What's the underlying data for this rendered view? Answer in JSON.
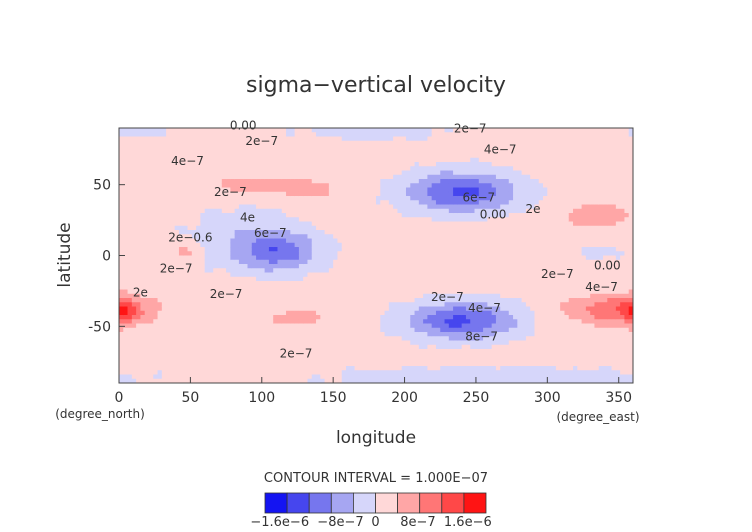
{
  "chart_data": {
    "type": "heatmap",
    "subtype": "filled-contour",
    "title": "sigma−vertical velocity",
    "xlabel": "longitude",
    "ylabel": "latitude",
    "xunit": "(degree_east)",
    "yunit": "(degree_north)",
    "xlim": [
      0,
      360
    ],
    "ylim": [
      -90,
      90
    ],
    "xticks": [
      0,
      50,
      100,
      150,
      200,
      250,
      300,
      350
    ],
    "yticks": [
      50,
      0,
      -50
    ],
    "contour_interval_text": "CONTOUR INTERVAL = 1.000E−07",
    "contour_interval": 1e-07,
    "background_value": 1.5e-07,
    "features": [
      {
        "lon": 240,
        "lat": 45,
        "value": -1.45e-06,
        "rlon": 38,
        "rlat": 14
      },
      {
        "lon": 240,
        "lat": -46,
        "value": -1.45e-06,
        "rlon": 38,
        "rlat": 13
      },
      {
        "lon": 112,
        "lat": 3,
        "value": -1.1e-06,
        "rlon": 28,
        "rlat": 14
      },
      {
        "lon": 85,
        "lat": 12,
        "value": -4e-07,
        "rlon": 40,
        "rlat": 22
      },
      {
        "lon": 90,
        "lat": 50,
        "value": 3.5e-07,
        "rlon": 35,
        "rlat": 8
      },
      {
        "lon": 130,
        "lat": 47,
        "value": 4e-07,
        "rlon": 22,
        "rlat": 8
      },
      {
        "lon": 45,
        "lat": 3,
        "value": 4e-07,
        "rlon": 14,
        "rlat": 8
      },
      {
        "lon": 3,
        "lat": -40,
        "value": 7e-07,
        "rlon": 10,
        "rlat": 10
      },
      {
        "lon": 125,
        "lat": -44,
        "value": 4.5e-07,
        "rlon": 20,
        "rlat": 6
      },
      {
        "lon": 335,
        "lat": 28,
        "value": 5.5e-07,
        "rlon": 25,
        "rlat": 8
      },
      {
        "lon": 350,
        "lat": -38,
        "value": 1e-06,
        "rlon": 35,
        "rlat": 10
      },
      {
        "lon": 335,
        "lat": 2,
        "value": -3e-07,
        "rlon": 20,
        "rlat": 5
      },
      {
        "lon": 180,
        "lat": 88,
        "value": -3e-07,
        "rlon": 60,
        "rlat": 8
      },
      {
        "lon": 260,
        "lat": -88,
        "value": -4e-07,
        "rlon": 120,
        "rlat": 10
      },
      {
        "lon": 12,
        "lat": 88,
        "value": -3e-07,
        "rlon": 25,
        "rlat": 6
      }
    ],
    "contour_labels": [
      {
        "text": "0.00",
        "lon": 87,
        "lat": 89
      },
      {
        "text": "2e−7",
        "lon": 246,
        "lat": 87
      },
      {
        "text": "2e−7",
        "lon": 100,
        "lat": 78
      },
      {
        "text": "4e−7",
        "lon": 48,
        "lat": 64
      },
      {
        "text": "4e−7",
        "lon": 267,
        "lat": 72
      },
      {
        "text": "2e−7",
        "lon": 78,
        "lat": 42
      },
      {
        "text": "4e",
        "lon": 90,
        "lat": 24
      },
      {
        "text": "6e−7",
        "lon": 106,
        "lat": 13
      },
      {
        "text": "6e−7",
        "lon": 252,
        "lat": 38
      },
      {
        "text": "0.00",
        "lon": 262,
        "lat": 29
      },
      {
        "text": "2e",
        "lon": 290,
        "lat": 30
      },
      {
        "text": "2e−0.6",
        "lon": 50,
        "lat": 10
      },
      {
        "text": "2e−7",
        "lon": 40,
        "lat": -12
      },
      {
        "text": "2e−7",
        "lon": 75,
        "lat": -30
      },
      {
        "text": "2e",
        "lon": 15,
        "lat": -29
      },
      {
        "text": "2e−7",
        "lon": 230,
        "lat": -32
      },
      {
        "text": "4e−7",
        "lon": 256,
        "lat": -40
      },
      {
        "text": "8e−7",
        "lon": 254,
        "lat": -60
      },
      {
        "text": "2e−7",
        "lon": 124,
        "lat": -72
      },
      {
        "text": "2e−7",
        "lon": 307,
        "lat": -16
      },
      {
        "text": "0.00",
        "lon": 342,
        "lat": -10
      },
      {
        "text": "4e−7",
        "lon": 338,
        "lat": -25
      }
    ],
    "colorbar": {
      "bounds": [
        -2e-06,
        -1.6e-06,
        -1.2e-06,
        -8e-07,
        -4e-07,
        0,
        4e-07,
        8e-07,
        1.2e-06,
        1.6e-06,
        2e-06
      ],
      "colors": [
        "#1414f2",
        "#4646ee",
        "#7676ee",
        "#a6a6f2",
        "#d6d6fa",
        "#ffd8d8",
        "#ffa6a6",
        "#ff7676",
        "#ff4848",
        "#ff1414"
      ],
      "tick_labels": [
        {
          "text": "−1.6e−6",
          "value": -1.6e-06
        },
        {
          "text": "−8e−7",
          "value": -8e-07
        },
        {
          "text": "0",
          "value": 0
        },
        {
          "text": "8e−7",
          "value": 8e-07
        },
        {
          "text": "1.6e−6",
          "value": 1.6e-06
        }
      ]
    }
  }
}
